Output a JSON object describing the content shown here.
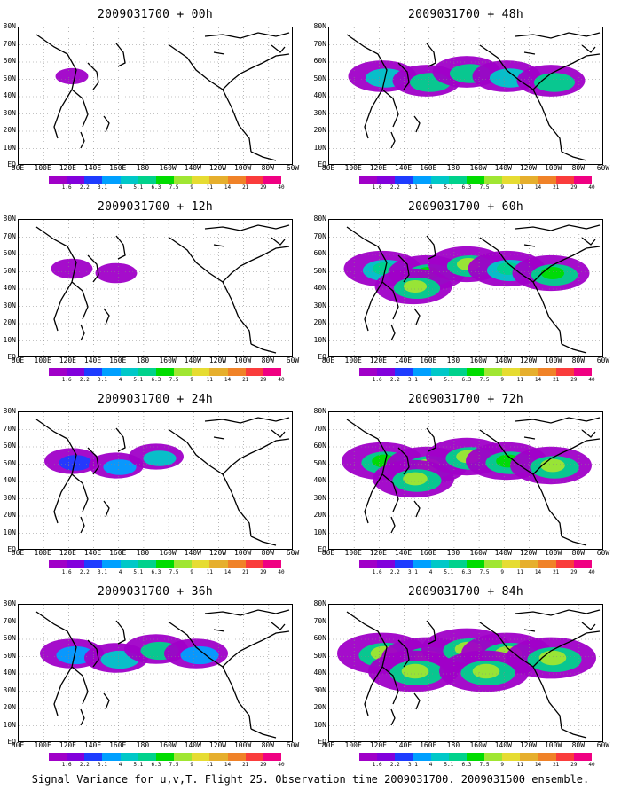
{
  "panels": [
    {
      "title": "2009031700 + 00h",
      "coverage": 0.05
    },
    {
      "title": "2009031700 + 48h",
      "coverage": 0.45
    },
    {
      "title": "2009031700 + 12h",
      "coverage": 0.15
    },
    {
      "title": "2009031700 + 60h",
      "coverage": 0.55
    },
    {
      "title": "2009031700 + 24h",
      "coverage": 0.3
    },
    {
      "title": "2009031700 + 72h",
      "coverage": 0.6
    },
    {
      "title": "2009031700 + 36h",
      "coverage": 0.4
    },
    {
      "title": "2009031700 + 84h",
      "coverage": 0.7
    }
  ],
  "axes": {
    "lat_labels": [
      "80N",
      "70N",
      "60N",
      "50N",
      "40N",
      "30N",
      "20N",
      "10N",
      "EQ"
    ],
    "lon_labels": [
      "80E",
      "100E",
      "120E",
      "140E",
      "160E",
      "180",
      "160W",
      "140W",
      "120W",
      "100W",
      "80W",
      "60W"
    ]
  },
  "colorbar": {
    "levels": [
      "1.6",
      "2.2",
      "3.1",
      "4",
      "5.1",
      "6.3",
      "7.5",
      "9",
      "11",
      "14",
      "21",
      "29",
      "40"
    ],
    "colors": [
      "#a000c8",
      "#8200dc",
      "#1e3cff",
      "#00a0ff",
      "#00c8c8",
      "#00d28c",
      "#00dc00",
      "#a0e632",
      "#e6dc32",
      "#e6af2d",
      "#f08228",
      "#fa3c3c",
      "#f00082"
    ]
  },
  "caption": "Signal Variance for u,v,T. Flight 25. Observation time 2009031700. 2009031500 ensemble."
}
